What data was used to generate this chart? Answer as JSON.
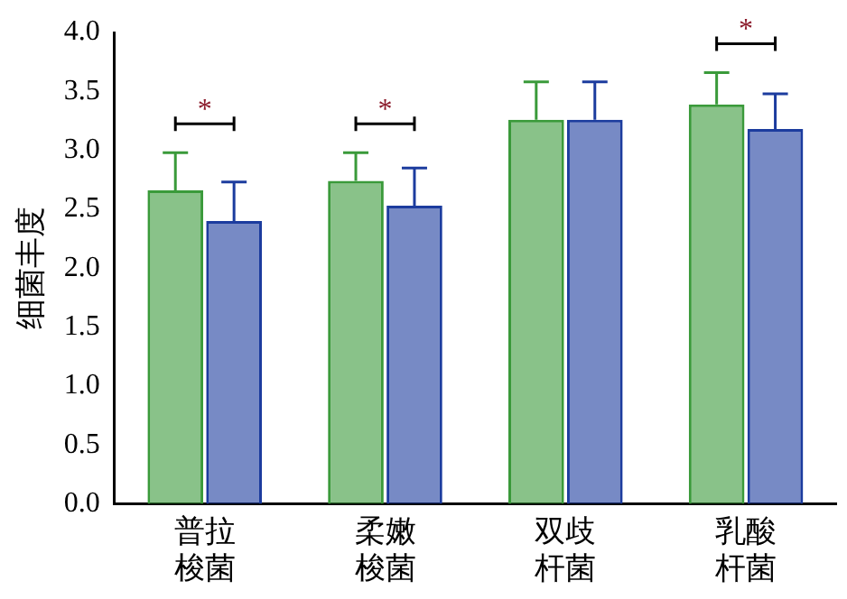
{
  "chart_data": {
    "type": "bar",
    "ylabel": "细菌丰度",
    "categories": [
      "普拉梭菌",
      "柔嫩梭菌",
      "双歧杆菌",
      "乳酸杆菌"
    ],
    "series": [
      {
        "color": "#3a9a3a",
        "values": [
          2.66,
          2.74,
          3.26,
          3.39
        ],
        "errors": [
          [
            2.66,
            2.98
          ],
          [
            2.74,
            2.98
          ],
          [
            3.26,
            3.58
          ],
          [
            3.39,
            3.66
          ]
        ]
      },
      {
        "color": "#1c3c9e",
        "values": [
          2.4,
          2.53,
          3.26,
          3.18
        ],
        "errors": [
          [
            2.4,
            2.73
          ],
          [
            2.53,
            2.85
          ],
          [
            3.26,
            3.58
          ],
          [
            3.18,
            3.48
          ]
        ]
      }
    ],
    "ylim": [
      0,
      4
    ],
    "yticks": [
      {
        "value": 0,
        "label": "0.0"
      },
      {
        "value": 0.5,
        "label": "0.5"
      },
      {
        "value": 1,
        "label": "1.0"
      },
      {
        "value": 1.5,
        "label": "1.5"
      },
      {
        "value": 2,
        "label": "2.0"
      },
      {
        "value": 2.5,
        "label": "2.5"
      },
      {
        "value": 3,
        "label": "3.0"
      },
      {
        "value": 3.5,
        "label": "3.5"
      },
      {
        "value": 4,
        "label": "4.0"
      }
    ],
    "annotations": [
      "*",
      "*",
      "*"
    ],
    "grid": false,
    "legend": false
  }
}
